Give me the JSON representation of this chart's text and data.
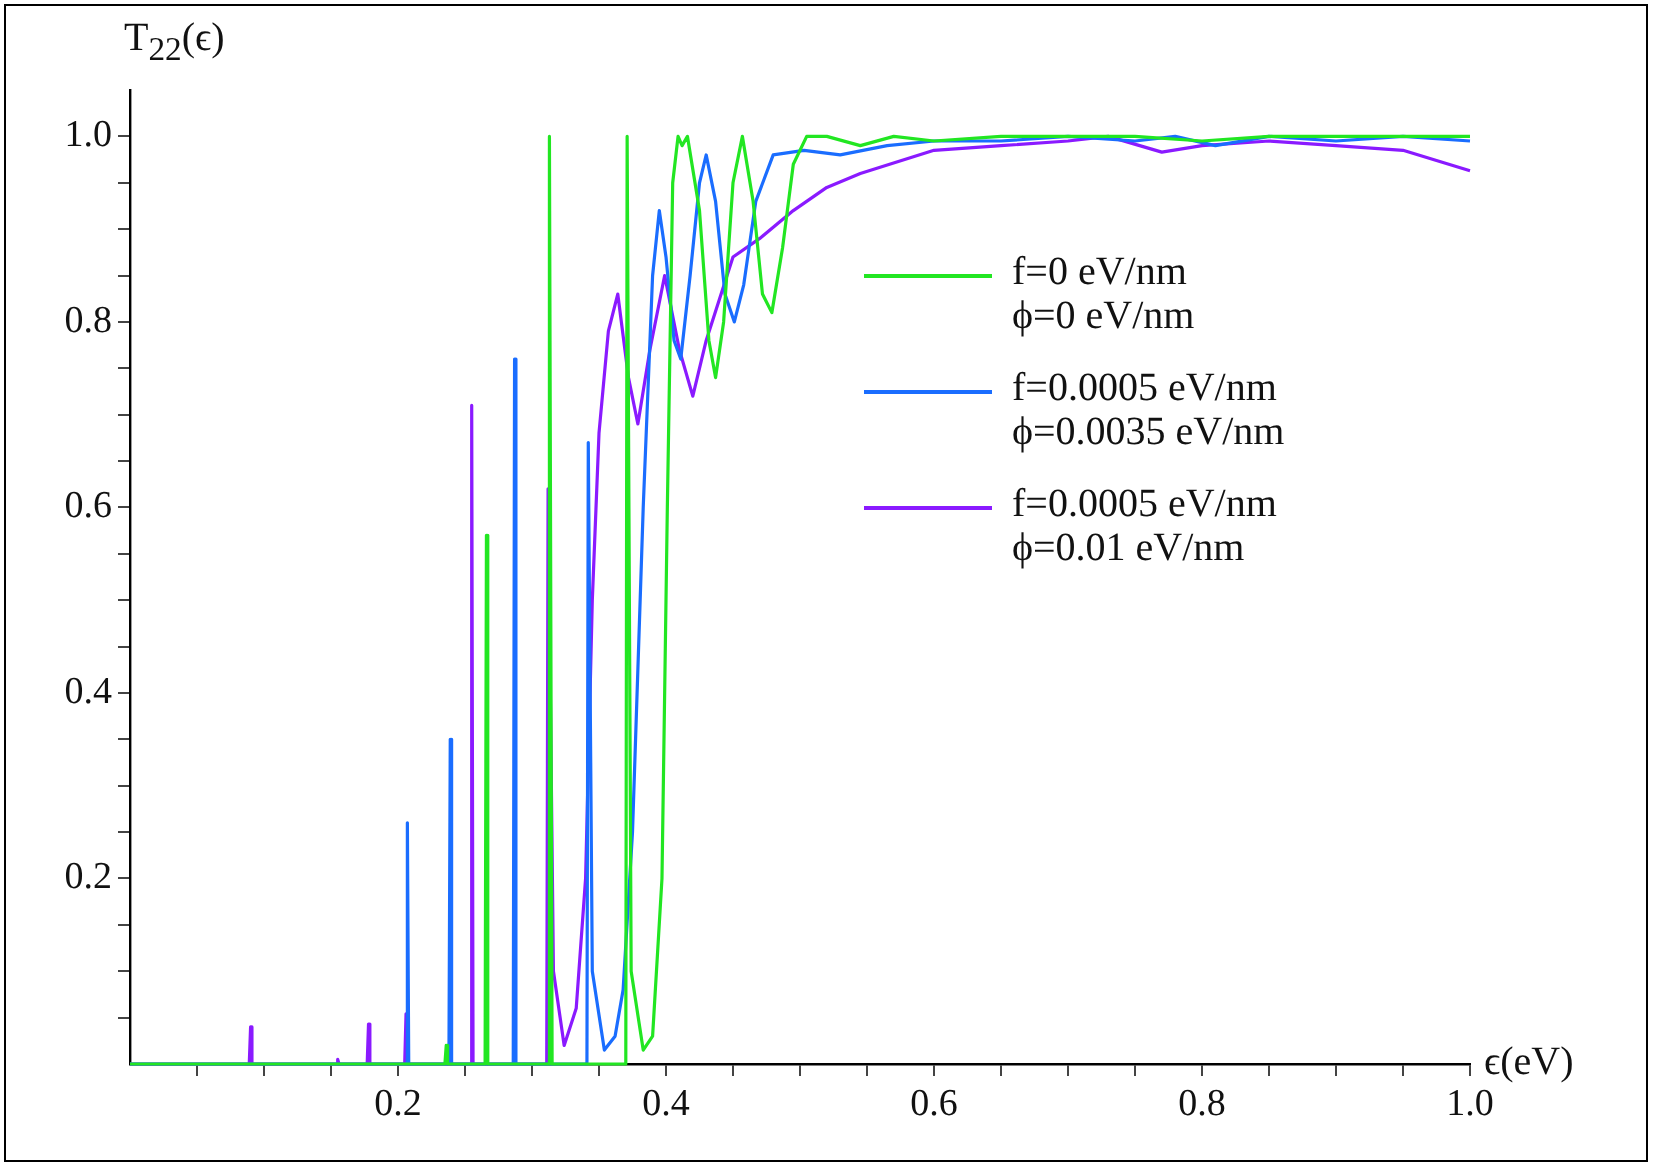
{
  "chart_data": {
    "type": "line",
    "xlabel": "ϵ(eV)",
    "ylabel": "T$_{22}$(ϵ)",
    "xlim": [
      0,
      1.0
    ],
    "ylim": [
      0,
      1.05
    ],
    "xticks": [
      {
        "value": 0.05,
        "label": null
      },
      {
        "value": 0.1,
        "label": null
      },
      {
        "value": 0.15,
        "label": null
      },
      0.2,
      {
        "value": 0.25,
        "label": null
      },
      {
        "value": 0.3,
        "label": null
      },
      {
        "value": 0.35,
        "label": null
      },
      0.4,
      {
        "value": 0.45,
        "label": null
      },
      {
        "value": 0.5,
        "label": null
      },
      {
        "value": 0.55,
        "label": null
      },
      0.6,
      {
        "value": 0.65,
        "label": null
      },
      {
        "value": 0.7,
        "label": null
      },
      {
        "value": 0.75,
        "label": null
      },
      0.8,
      {
        "value": 0.85,
        "label": null
      },
      {
        "value": 0.9,
        "label": null
      },
      {
        "value": 0.95,
        "label": null
      },
      {
        "value": 1.0,
        "label": "1.0"
      }
    ],
    "yticks": [
      {
        "value": 0.05,
        "label": null
      },
      {
        "value": 0.1,
        "label": null
      },
      {
        "value": 0.15,
        "label": null
      },
      0.2,
      {
        "value": 0.25,
        "label": null
      },
      {
        "value": 0.3,
        "label": null
      },
      {
        "value": 0.35,
        "label": null
      },
      0.4,
      {
        "value": 0.45,
        "label": null
      },
      {
        "value": 0.5,
        "label": null
      },
      {
        "value": 0.55,
        "label": null
      },
      0.6,
      {
        "value": 0.65,
        "label": null
      },
      {
        "value": 0.7,
        "label": null
      },
      {
        "value": 0.75,
        "label": null
      },
      0.8,
      {
        "value": 0.85,
        "label": null
      },
      {
        "value": 0.9,
        "label": null
      },
      {
        "value": 0.95,
        "label": null
      },
      {
        "value": 1.0,
        "label": "1.0"
      }
    ],
    "legend": "right",
    "series": [
      {
        "name": "f=0 eV/nm\nϕ=0 eV/nm",
        "color": "#22e622",
        "x": [
          0,
          0.235,
          0.236,
          0.237,
          0.265,
          0.266,
          0.267,
          0.312,
          0.313,
          0.315,
          0.32,
          0.33,
          0.37,
          0.371,
          0.374,
          0.383,
          0.39,
          0.397,
          0.401,
          0.405,
          0.409,
          0.412,
          0.416,
          0.425,
          0.432,
          0.437,
          0.443,
          0.45,
          0.457,
          0.465,
          0.472,
          0.479,
          0.487,
          0.495,
          0.505,
          0.52,
          0.545,
          0.57,
          0.6,
          0.65,
          0.7,
          0.75,
          0.8,
          0.85,
          0.9,
          0.95,
          1.0
        ],
        "values": [
          0,
          0,
          0.02,
          0,
          0,
          0.57,
          0,
          0,
          1.0,
          0,
          0,
          0,
          0,
          1.0,
          0.1,
          0.015,
          0.03,
          0.2,
          0.6,
          0.95,
          1.0,
          0.99,
          1.0,
          0.92,
          0.78,
          0.74,
          0.8,
          0.95,
          1.0,
          0.93,
          0.83,
          0.81,
          0.88,
          0.97,
          1.0,
          1.0,
          0.99,
          1.0,
          0.995,
          1.0,
          1.0,
          1.0,
          0.995,
          1.0,
          1.0,
          1.0,
          1.0
        ]
      },
      {
        "name": "f=0.0005 eV/nm\nϕ=0.0035 eV/nm",
        "color": "#1a6dff",
        "x": [
          0,
          0.206,
          0.207,
          0.208,
          0.238,
          0.239,
          0.24,
          0.286,
          0.287,
          0.288,
          0.341,
          0.342,
          0.345,
          0.354,
          0.362,
          0.368,
          0.375,
          0.383,
          0.39,
          0.395,
          0.4,
          0.406,
          0.411,
          0.418,
          0.425,
          0.43,
          0.437,
          0.444,
          0.451,
          0.458,
          0.467,
          0.48,
          0.503,
          0.53,
          0.565,
          0.6,
          0.65,
          0.7,
          0.75,
          0.78,
          0.81,
          0.85,
          0.9,
          0.95,
          1.0
        ],
        "values": [
          0,
          0,
          0.26,
          0,
          0,
          0.35,
          0,
          0,
          0.76,
          0,
          0,
          0.67,
          0.1,
          0.015,
          0.03,
          0.08,
          0.25,
          0.6,
          0.85,
          0.92,
          0.87,
          0.78,
          0.76,
          0.85,
          0.95,
          0.98,
          0.93,
          0.83,
          0.8,
          0.84,
          0.93,
          0.98,
          0.985,
          0.98,
          0.99,
          0.995,
          0.995,
          1.0,
          0.995,
          1.0,
          0.99,
          1.0,
          0.995,
          1.0,
          0.995
        ]
      },
      {
        "name": "f=0.0005 eV/nm\nϕ=0.01 eV/nm",
        "color": "#8a1aff",
        "x": [
          0,
          0.089,
          0.09,
          0.091,
          0.154,
          0.155,
          0.156,
          0.177,
          0.178,
          0.179,
          0.205,
          0.206,
          0.207,
          0.254,
          0.255,
          0.256,
          0.311,
          0.312,
          0.316,
          0.324,
          0.333,
          0.34,
          0.345,
          0.35,
          0.357,
          0.364,
          0.372,
          0.379,
          0.388,
          0.399,
          0.41,
          0.42,
          0.43,
          0.45,
          0.47,
          0.495,
          0.52,
          0.545,
          0.6,
          0.65,
          0.7,
          0.73,
          0.77,
          0.8,
          0.85,
          0.9,
          0.95,
          1.0
        ],
        "values": [
          0,
          0,
          0.04,
          0,
          0,
          0.005,
          0,
          0,
          0.043,
          0,
          0,
          0.054,
          0,
          0,
          0.71,
          0,
          0,
          0.62,
          0.1,
          0.02,
          0.06,
          0.2,
          0.5,
          0.68,
          0.79,
          0.83,
          0.74,
          0.69,
          0.77,
          0.85,
          0.77,
          0.72,
          0.78,
          0.87,
          0.89,
          0.92,
          0.945,
          0.96,
          0.985,
          0.99,
          0.995,
          1.0,
          0.983,
          0.99,
          0.995,
          0.99,
          0.985,
          0.963
        ]
      }
    ]
  }
}
